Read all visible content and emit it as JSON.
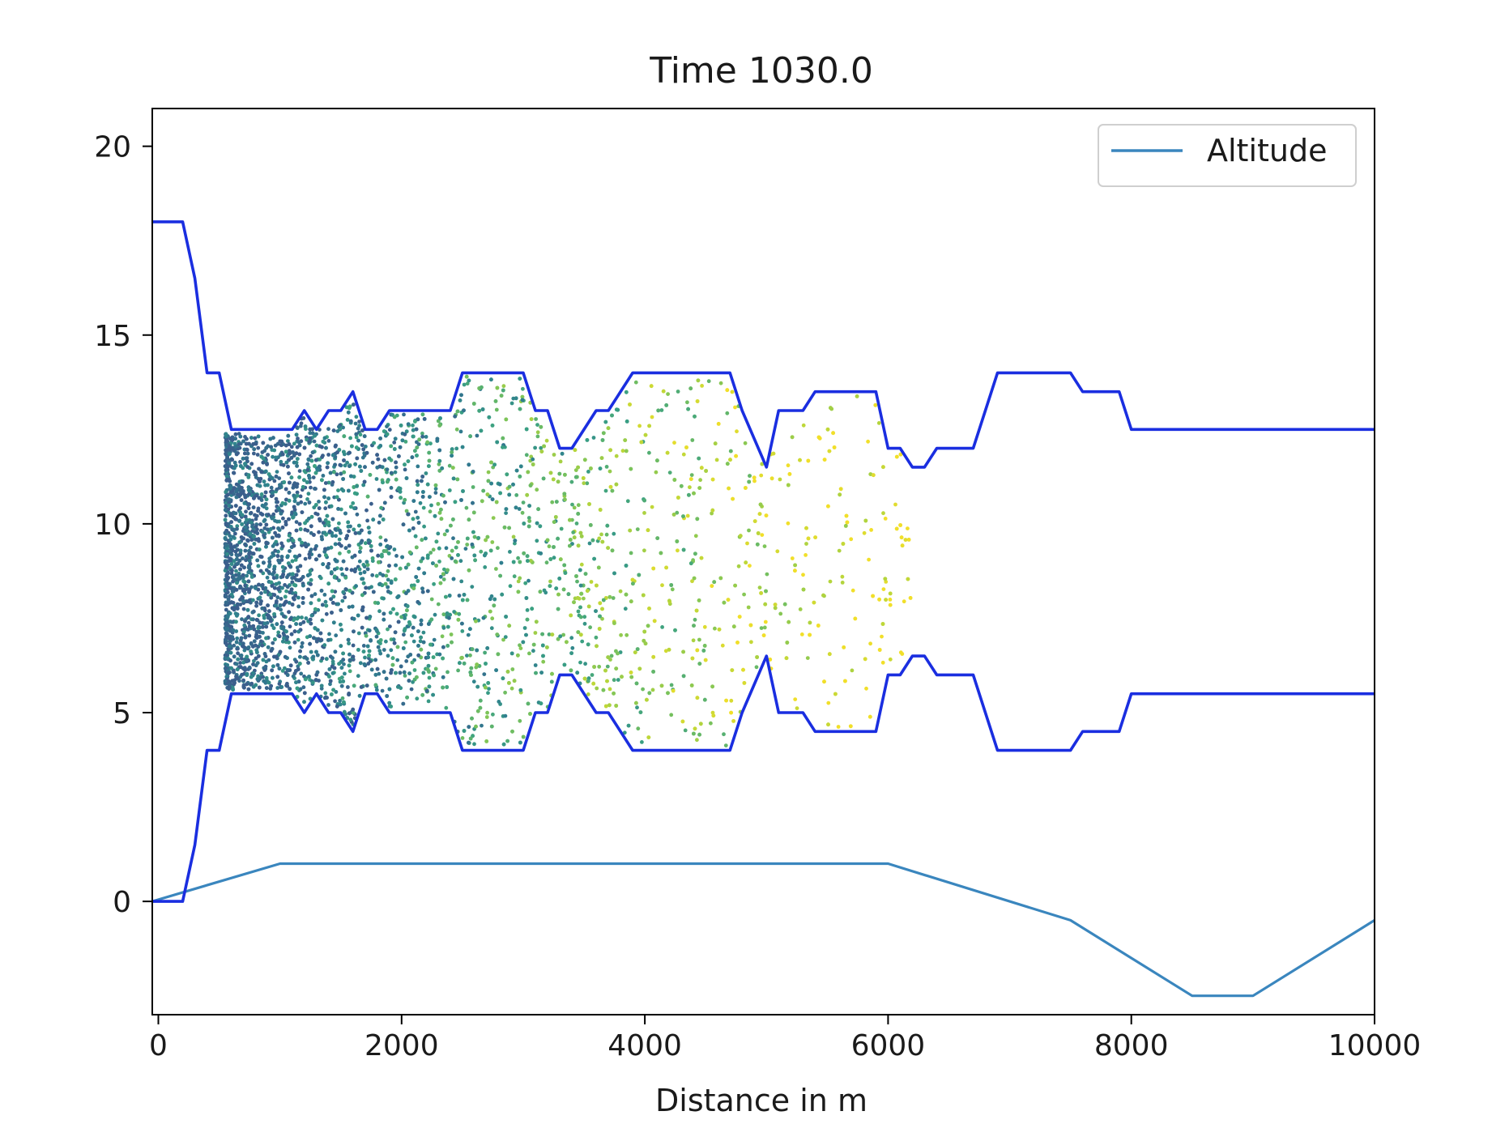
{
  "chart_data": {
    "type": "line",
    "title": "Time 1030.0",
    "xlabel": "Distance in m",
    "ylabel": "",
    "xlim": [
      -50,
      10000
    ],
    "ylim": [
      -3,
      21
    ],
    "grid": false,
    "legend": {
      "placement": "top-right",
      "entries": [
        "Altitude"
      ]
    },
    "x_ticks": [
      {
        "value": 0,
        "label": "0"
      },
      {
        "value": 2000,
        "label": "2000"
      },
      {
        "value": 4000,
        "label": "4000"
      },
      {
        "value": 6000,
        "label": "6000"
      },
      {
        "value": 8000,
        "label": "8000"
      },
      {
        "value": 10000,
        "label": "10000"
      }
    ],
    "y_ticks": [
      {
        "value": 0,
        "label": "0"
      },
      {
        "value": 5,
        "label": "5"
      },
      {
        "value": 10,
        "label": "10"
      },
      {
        "value": 15,
        "label": "15"
      },
      {
        "value": 20,
        "label": "20"
      }
    ],
    "colors": {
      "altitude": "#3a86be",
      "boundary": "#1a2ee0",
      "scatter_palette": [
        "#3b5f8c",
        "#2f7e8e",
        "#3aa083",
        "#7cc45a",
        "#b9d63a",
        "#f1df2a"
      ]
    },
    "series": [
      {
        "name": "Altitude",
        "role": "line",
        "x": [
          -50,
          1000,
          6000,
          7500,
          8500,
          9000,
          10000
        ],
        "y": [
          0,
          1,
          1,
          -0.5,
          -2.5,
          -2.5,
          -0.5
        ]
      },
      {
        "role": "upper-boundary",
        "x": [
          -50,
          200,
          300,
          400,
          500,
          600,
          700,
          1000,
          1100,
          1200,
          1300,
          1400,
          1500,
          1600,
          1700,
          1800,
          1900,
          2000,
          2200,
          2400,
          2500,
          2600,
          3000,
          3100,
          3200,
          3300,
          3400,
          3600,
          3700,
          3900,
          4000,
          4700,
          4800,
          5000,
          5100,
          5300,
          5400,
          5600,
          5900,
          6000,
          6100,
          6200,
          6300,
          6400,
          6700,
          6900,
          7500,
          7600,
          7900,
          8000,
          10000
        ],
        "y": [
          18,
          18,
          16.5,
          14,
          14,
          12.5,
          12.5,
          12.5,
          12.5,
          13,
          12.5,
          13,
          13,
          13.5,
          12.5,
          12.5,
          13,
          13,
          13,
          13,
          14,
          14,
          14,
          13,
          13,
          12,
          12,
          13,
          13,
          14,
          14,
          14,
          13,
          11.5,
          13,
          13,
          13.5,
          13.5,
          13.5,
          12,
          12,
          11.5,
          11.5,
          12,
          12,
          14,
          14,
          13.5,
          13.5,
          12.5,
          12.5
        ]
      },
      {
        "role": "lower-boundary",
        "x": [
          -50,
          200,
          300,
          400,
          500,
          600,
          700,
          1000,
          1100,
          1200,
          1300,
          1400,
          1500,
          1600,
          1700,
          1800,
          1900,
          2000,
          2200,
          2400,
          2500,
          2600,
          3000,
          3100,
          3200,
          3300,
          3400,
          3600,
          3700,
          3900,
          4000,
          4700,
          4800,
          5000,
          5100,
          5300,
          5400,
          5600,
          5900,
          6000,
          6100,
          6200,
          6300,
          6400,
          6700,
          6900,
          7500,
          7600,
          7900,
          8000,
          10000
        ],
        "y": [
          0,
          0,
          1.5,
          4,
          4,
          5.5,
          5.5,
          5.5,
          5.5,
          5,
          5.5,
          5,
          5,
          4.5,
          5.5,
          5.5,
          5,
          5,
          5,
          5,
          4,
          4,
          4,
          5,
          5,
          6,
          6,
          5,
          5,
          4,
          4,
          4,
          5,
          6.5,
          5,
          5,
          4.5,
          4.5,
          4.5,
          6,
          6,
          6.5,
          6.5,
          6,
          6,
          4,
          4,
          4.5,
          4.5,
          5.5,
          5.5
        ]
      }
    ],
    "scatter": {
      "description_free": true,
      "x_range": [
        550,
        6200
      ],
      "density_peak_x": 800,
      "y_range_within_boundaries": true
    }
  }
}
